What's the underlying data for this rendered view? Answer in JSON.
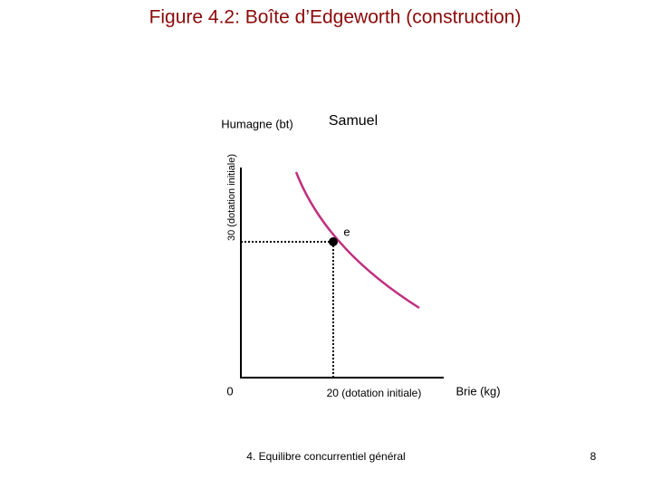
{
  "header": {
    "title": "Figure 4.2: Boîte d’Edgeworth (construction)"
  },
  "diagram": {
    "y_axis_label": "Humagne (bt)",
    "second_agent": "Samuel",
    "y_endowment": "30 (dotation initiale)",
    "point_label": "e",
    "origin": "0",
    "x_endowment": "20 (dotation initiale)",
    "x_axis_label": "Brie (kg)"
  },
  "footer": {
    "text": "4. Equilibre concurrentiel général",
    "page": "8"
  }
}
